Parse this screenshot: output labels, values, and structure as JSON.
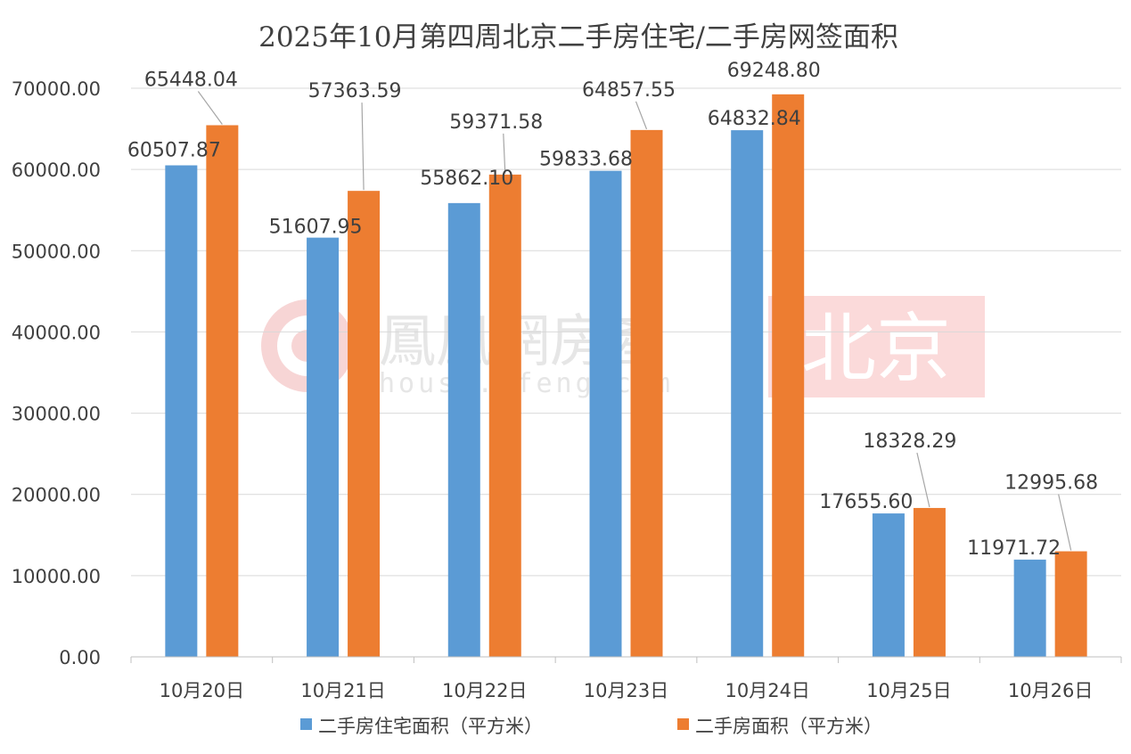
{
  "watermark": {
    "brand": "鳳凰網房產",
    "url": "house.ifeng.com",
    "city": "北京"
  },
  "chart_data": {
    "type": "bar",
    "title": "2025年10月第四周北京二手房住宅/二手房网签面积",
    "categories": [
      "10月20日",
      "10月21日",
      "10月22日",
      "10月23日",
      "10月24日",
      "10月25日",
      "10月26日"
    ],
    "series": [
      {
        "name": "二手房住宅面积（平方米）",
        "color": "#5b9bd5",
        "values": [
          60507.87,
          51607.95,
          55862.1,
          59833.68,
          64832.84,
          17655.6,
          11971.72
        ],
        "labels": [
          "60507.87",
          "51607.95",
          "55862.10",
          "59833.68",
          "64832.84",
          "17655.60",
          "11971.72"
        ]
      },
      {
        "name": "二手房面积（平方米）",
        "color": "#ed7d31",
        "values": [
          65448.04,
          57363.59,
          59371.58,
          64857.55,
          69248.8,
          18328.29,
          12995.68
        ],
        "labels": [
          "65448.04",
          "57363.59",
          "59371.58",
          "64857.55",
          "69248.80",
          "18328.29",
          "12995.68"
        ]
      }
    ],
    "ylim": [
      0,
      70000
    ],
    "yticks": [
      0,
      10000,
      20000,
      30000,
      40000,
      50000,
      60000,
      70000
    ],
    "ytick_labels": [
      "0.00",
      "10000.00",
      "20000.00",
      "30000.00",
      "40000.00",
      "50000.00",
      "60000.00",
      "70000.00"
    ],
    "grid": true,
    "legend_position": "bottom"
  }
}
